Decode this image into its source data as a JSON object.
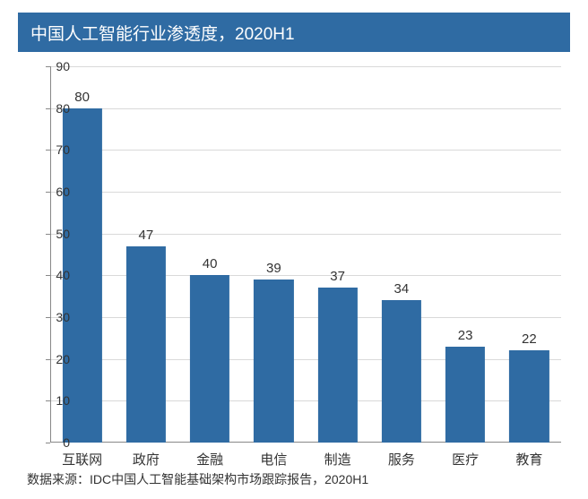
{
  "chart": {
    "type": "bar",
    "title": "中国人工智能行业渗透度，2020H1",
    "title_fontsize": 19,
    "title_bg_color": "#2f6ba3",
    "title_text_color": "#ffffff",
    "background_color": "#ffffff",
    "plot_bg_color": "#ffffff",
    "categories": [
      "互联网",
      "政府",
      "金融",
      "电信",
      "制造",
      "服务",
      "医疗",
      "教育"
    ],
    "values": [
      80,
      47,
      40,
      39,
      37,
      34,
      23,
      22
    ],
    "bar_color": "#2f6ba3",
    "bar_width_ratio": 0.62,
    "ylim": [
      0,
      90
    ],
    "ytick_step": 10,
    "yticks": [
      0,
      10,
      20,
      30,
      40,
      50,
      60,
      70,
      80,
      90
    ],
    "grid_color": "#d9d9d9",
    "axis_color": "#888888",
    "tick_fontsize": 14,
    "value_label_fontsize": 15,
    "x_label_fontsize": 15,
    "source_text": "数据来源：IDC中国人工智能基础架构市场跟踪报告，2020H1",
    "source_fontsize": 14,
    "text_color": "#333333"
  }
}
